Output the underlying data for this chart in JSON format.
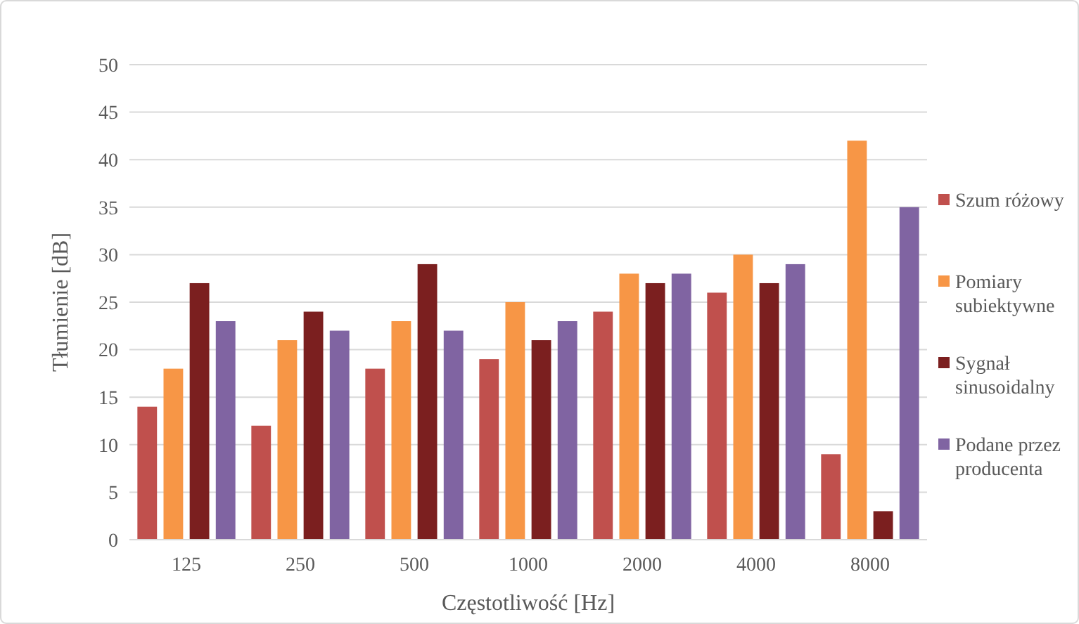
{
  "chart_data": {
    "type": "bar",
    "xlabel": "Częstotliwość [Hz]",
    "ylabel": "Tłumienie [dB]",
    "categories": [
      "125",
      "250",
      "500",
      "1000",
      "2000",
      "4000",
      "8000"
    ],
    "series": [
      {
        "name": "Szum różowy",
        "color": "#c0504d",
        "values": [
          14,
          12,
          18,
          19,
          24,
          26,
          9
        ]
      },
      {
        "name": "Pomiary subiektywne",
        "color": "#f79646",
        "values": [
          18,
          21,
          23,
          25,
          28,
          30,
          42
        ]
      },
      {
        "name": "Sygnał sinusoidalny",
        "color": "#7b1f1f",
        "values": [
          27,
          24,
          29,
          21,
          27,
          27,
          3
        ]
      },
      {
        "name": "Podane przez producenta",
        "color": "#8064a2",
        "values": [
          23,
          22,
          22,
          23,
          28,
          29,
          35
        ]
      }
    ],
    "ylim": [
      0,
      50
    ],
    "yticks": [
      0,
      5,
      10,
      15,
      20,
      25,
      30,
      35,
      40,
      45,
      50
    ],
    "grid": "y",
    "legend": "right"
  }
}
